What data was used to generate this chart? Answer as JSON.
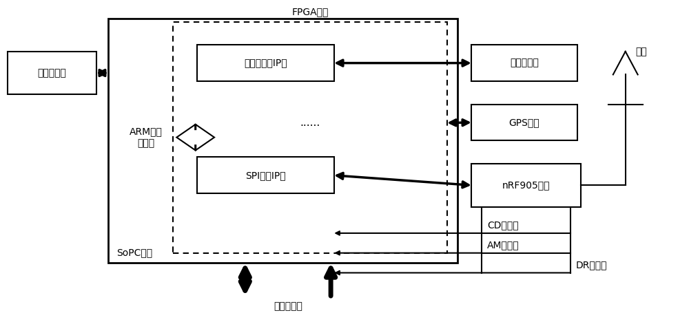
{
  "bg_color": "#ffffff",
  "text_color": "#000000",
  "box_edge_color": "#000000",
  "arm_label": "ARM处理\n器硬核",
  "ethernet_port_label": "以太网电口",
  "ethernet_ip_label": "三速以太网IP核",
  "spi_ip_label": "SPI总线IP核",
  "ethernet_optical_label": "以太网光口",
  "gps_label": "GPS接口",
  "nrf_label": "nRF905模块",
  "sopc_label": "SoPC芯片",
  "fpga_label": "FPGA芯片",
  "hardware_label": "硬件联络线",
  "cd_label": "CD状态线",
  "am_label": "AM状态线",
  "dr_label": "DR状态线",
  "antenna_label": "天线",
  "dots_label": "......",
  "font_size": 11,
  "small_font_size": 10
}
